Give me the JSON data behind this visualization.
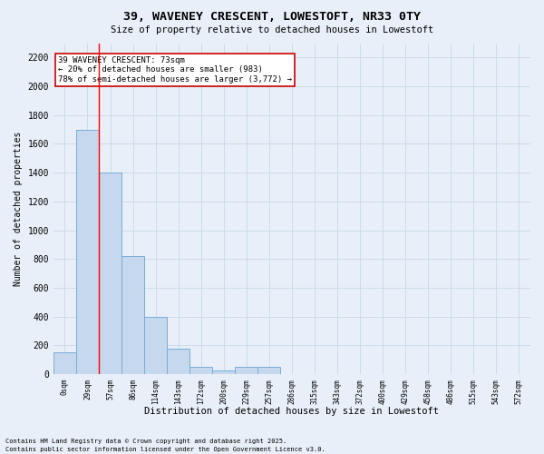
{
  "title_line1": "39, WAVENEY CRESCENT, LOWESTOFT, NR33 0TY",
  "title_line2": "Size of property relative to detached houses in Lowestoft",
  "xlabel": "Distribution of detached houses by size in Lowestoft",
  "ylabel": "Number of detached properties",
  "bar_labels": [
    "0sqm",
    "29sqm",
    "57sqm",
    "86sqm",
    "114sqm",
    "143sqm",
    "172sqm",
    "200sqm",
    "229sqm",
    "257sqm",
    "286sqm",
    "315sqm",
    "343sqm",
    "372sqm",
    "400sqm",
    "429sqm",
    "458sqm",
    "486sqm",
    "515sqm",
    "543sqm",
    "572sqm"
  ],
  "bar_values": [
    150,
    1700,
    1400,
    820,
    400,
    175,
    50,
    25,
    50,
    50,
    0,
    0,
    0,
    0,
    0,
    0,
    0,
    0,
    0,
    0,
    0
  ],
  "bar_color": "#c5d8ed",
  "bar_edge_color": "#7aadd4",
  "grid_color": "#c8d8e8",
  "background_color": "#e8eff8",
  "red_line_x": 1.5,
  "annotation_text": "39 WAVENEY CRESCENT: 73sqm\n← 20% of detached houses are smaller (983)\n78% of semi-detached houses are larger (3,772) →",
  "annotation_box_color": "#ffffff",
  "annotation_box_edge": "#cc0000",
  "ylim": [
    0,
    2300
  ],
  "yticks": [
    0,
    200,
    400,
    600,
    800,
    1000,
    1200,
    1400,
    1600,
    1800,
    2000,
    2200
  ],
  "footnote_line1": "Contains HM Land Registry data © Crown copyright and database right 2025.",
  "footnote_line2": "Contains public sector information licensed under the Open Government Licence v3.0."
}
